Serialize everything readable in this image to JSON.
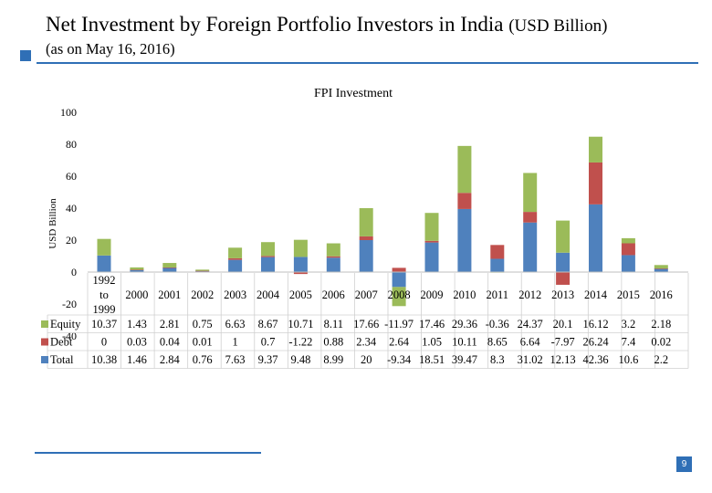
{
  "page": {
    "title": "Net Investment by Foreign Portfolio Investors in India",
    "title_unit": "(USD Billion)",
    "subtitle": "(as on  May 16, 2016)",
    "page_number": "9"
  },
  "colors": {
    "equity": "#9bbb59",
    "debt": "#c0504d",
    "total": "#4f81bd",
    "accent": "#2f6fb6"
  },
  "chart_data": {
    "type": "bar",
    "title": "FPI Investment",
    "ylabel": "USD Billion",
    "xlabel": "",
    "ylim": [
      -40,
      100
    ],
    "yticks": [
      100,
      80,
      60,
      40,
      20,
      0,
      -20,
      -40
    ],
    "grid": false,
    "legend_position": "left, in data table",
    "categories": [
      "1992 to 1999",
      "2000",
      "2001",
      "2002",
      "2003",
      "2004",
      "2005",
      "2006",
      "2007",
      "2008",
      "2009",
      "2010",
      "2011",
      "2012",
      "2013",
      "2014",
      "2015",
      "2016"
    ],
    "category_lines": [
      [
        "1992",
        "to",
        "1999"
      ],
      [
        "2000"
      ],
      [
        "2001"
      ],
      [
        "2002"
      ],
      [
        "2003"
      ],
      [
        "2004"
      ],
      [
        "2005"
      ],
      [
        "2006"
      ],
      [
        "2007"
      ],
      [
        "2008"
      ],
      [
        "2009"
      ],
      [
        "2010"
      ],
      [
        "2011"
      ],
      [
        "2012"
      ],
      [
        "2013"
      ],
      [
        "2014"
      ],
      [
        "2015"
      ],
      [
        "2016"
      ]
    ],
    "series": [
      {
        "name": "Equity",
        "values": [
          10.37,
          1.43,
          2.81,
          0.75,
          6.63,
          8.67,
          10.71,
          8.11,
          17.66,
          -11.97,
          17.46,
          29.36,
          -0.36,
          24.37,
          20.1,
          16.12,
          3.2,
          2.18
        ]
      },
      {
        "name": "Debt",
        "values": [
          0,
          0.03,
          0.04,
          0.01,
          1,
          0.7,
          -1.22,
          0.88,
          2.34,
          2.64,
          1.05,
          10.11,
          8.65,
          6.64,
          -7.97,
          26.24,
          7.4,
          0.02
        ]
      },
      {
        "name": "Total",
        "values": [
          10.38,
          1.46,
          2.84,
          0.76,
          7.63,
          9.37,
          9.48,
          8.99,
          20,
          -9.34,
          18.51,
          39.47,
          8.3,
          31.02,
          12.13,
          42.36,
          10.6,
          2.2
        ]
      }
    ],
    "table_rows": [
      {
        "name": "Equity",
        "cells": [
          "10.37",
          "1.43",
          "2.81",
          "0.75",
          "6.63",
          "8.67",
          "10.71",
          "8.11",
          "17.66",
          "-11.97",
          "17.46",
          "29.36",
          "-0.36",
          "24.37",
          "20.1",
          "16.12",
          "3.2",
          "2.18"
        ]
      },
      {
        "name": "Debt",
        "cells": [
          "0",
          "0.03",
          "0.04",
          "0.01",
          "1",
          "0.7",
          "-1.22",
          "0.88",
          "2.34",
          "2.64",
          "1.05",
          "10.11",
          "8.65",
          "6.64",
          "-7.97",
          "26.24",
          "7.4",
          "0.02"
        ]
      },
      {
        "name": "Total",
        "cells": [
          "10.38",
          "1.46",
          "2.84",
          "0.76",
          "7.63",
          "9.37",
          "9.48",
          "8.99",
          "20",
          "-9.34",
          "18.51",
          "39.47",
          "8.3",
          "31.02",
          "12.13",
          "42.36",
          "10.6",
          "2.2"
        ]
      }
    ]
  }
}
